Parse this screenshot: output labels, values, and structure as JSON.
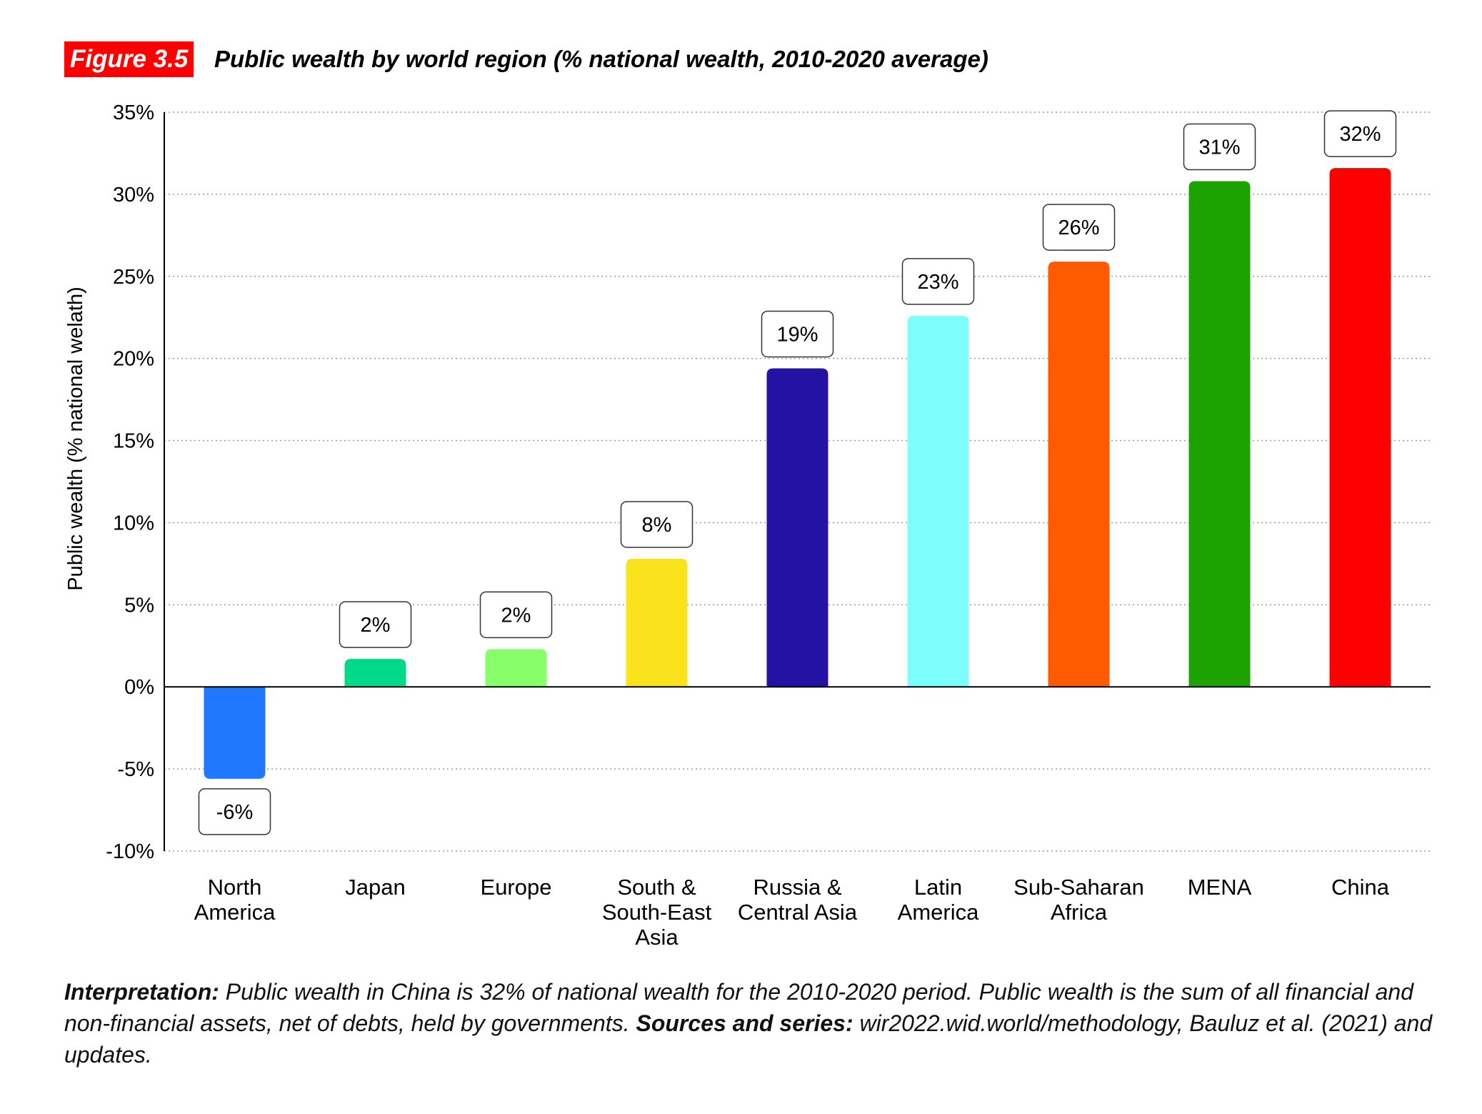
{
  "figure": {
    "badge": "Figure 3.5",
    "title": "Public wealth by world region (% national wealth, 2010-2020 average)"
  },
  "chart_data": {
    "type": "bar",
    "title": "Public wealth by world region (% national wealth, 2010-2020 average)",
    "xlabel": "",
    "ylabel": "Public wealth (% national welath)",
    "ylim": [
      -10,
      35
    ],
    "yticks": [
      35,
      30,
      25,
      20,
      15,
      10,
      5,
      0,
      -5,
      -10
    ],
    "ytick_labels": [
      "35%",
      "30%",
      "25%",
      "20%",
      "15%",
      "10%",
      "5%",
      "0%",
      "-5%",
      "-10%"
    ],
    "grid": true,
    "categories": [
      [
        "North",
        "America"
      ],
      [
        "Japan"
      ],
      [
        "Europe"
      ],
      [
        "South &",
        "South-East",
        "Asia"
      ],
      [
        "Russia &",
        "Central Asia"
      ],
      [
        "Latin",
        "America"
      ],
      [
        "Sub-Saharan",
        "Africa"
      ],
      [
        "MENA"
      ],
      [
        "China"
      ]
    ],
    "values": [
      -5.6,
      1.7,
      2.3,
      7.8,
      19.4,
      22.6,
      25.9,
      30.8,
      31.6
    ],
    "data_labels": [
      "-6%",
      "2%",
      "2%",
      "8%",
      "19%",
      "23%",
      "26%",
      "31%",
      "32%"
    ],
    "colors": [
      "#1f78ff",
      "#00d98a",
      "#88ff6a",
      "#fae31c",
      "#2312a3",
      "#7dfffe",
      "#ff5a00",
      "#1ca300",
      "#ff0000"
    ]
  },
  "note": {
    "interp_label": "Interpretation:",
    "interp_text": " Public wealth in China is 32% of national wealth for the 2010-2020 period. Public wealth is the sum of all financial and non-financial assets, net of debts, held by governments. ",
    "sources_label": "Sources and series:",
    "sources_text": " wir2022.wid.world/methodology, Bauluz et al. (2021) and updates."
  }
}
